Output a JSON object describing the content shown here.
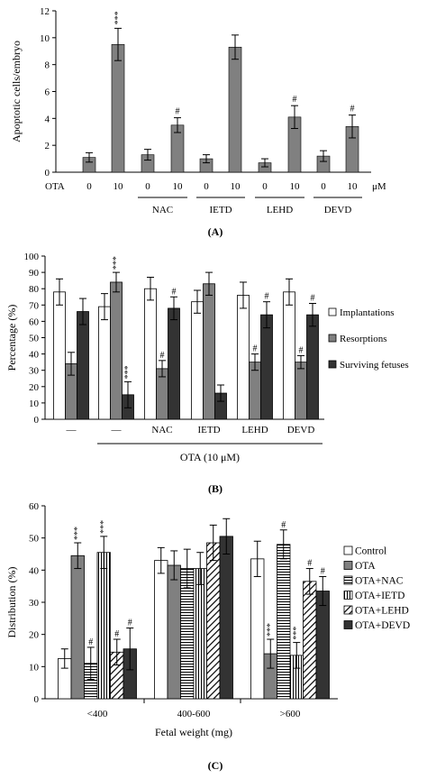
{
  "chart_data": [
    {
      "panel_label": "(A)",
      "type": "bar",
      "ylabel": "Apoptotic cells/embryo",
      "ylim": [
        0,
        12
      ],
      "yticks": [
        0,
        2,
        4,
        6,
        8,
        10,
        12
      ],
      "row_label": "OTA",
      "unit": "μM",
      "categories": [
        "0",
        "10",
        "0",
        "10",
        "0",
        "10",
        "0",
        "10",
        "0",
        "10"
      ],
      "groups": [
        {
          "label": "",
          "indices": [
            0,
            1
          ]
        },
        {
          "label": "NAC",
          "indices": [
            2,
            3
          ]
        },
        {
          "label": "IETD",
          "indices": [
            4,
            5
          ]
        },
        {
          "label": "LEHD",
          "indices": [
            6,
            7
          ]
        },
        {
          "label": "DEVD",
          "indices": [
            8,
            9
          ]
        }
      ],
      "values": [
        1.1,
        9.5,
        1.3,
        3.5,
        1.0,
        9.3,
        0.7,
        4.1,
        1.2,
        3.4
      ],
      "errors": [
        0.35,
        1.2,
        0.4,
        0.55,
        0.3,
        0.9,
        0.3,
        0.85,
        0.4,
        0.85
      ],
      "annotations": [
        "",
        "***",
        "",
        "#",
        "",
        "",
        "",
        "#",
        "",
        "#"
      ],
      "colors": {
        "bar": "#808080"
      }
    },
    {
      "panel_label": "(B)",
      "type": "bar",
      "ylabel": "Percentage (%)",
      "ylim": [
        0,
        100
      ],
      "yticks": [
        0,
        10,
        20,
        30,
        40,
        50,
        60,
        70,
        80,
        90,
        100
      ],
      "categories": [
        "—",
        "—",
        "NAC",
        "IETD",
        "LEHD",
        "DEVD"
      ],
      "xlabel": "OTA (10 μM)",
      "legend_position": "right",
      "series": [
        {
          "name": "Implantations",
          "color": "#ffffff",
          "values": [
            78,
            69,
            80,
            72,
            76,
            78
          ],
          "errors": [
            8,
            8,
            7,
            7,
            8,
            8
          ],
          "annotations": [
            "",
            "",
            "",
            "",
            "",
            ""
          ]
        },
        {
          "name": "Resorptions",
          "color": "#808080",
          "values": [
            34,
            84,
            31,
            83,
            35,
            35
          ],
          "errors": [
            7,
            6,
            5,
            7,
            5,
            4
          ],
          "annotations": [
            "",
            "***",
            "#",
            "",
            "#",
            "#"
          ]
        },
        {
          "name": "Surviving fetuses",
          "color": "#333333",
          "values": [
            66,
            15,
            68,
            16,
            64,
            64
          ],
          "errors": [
            8,
            8,
            7,
            5,
            8,
            7
          ],
          "annotations": [
            "",
            "***",
            "#",
            "",
            "#",
            "#"
          ]
        }
      ]
    },
    {
      "panel_label": "(C)",
      "type": "bar",
      "ylabel": "Distribution (%)",
      "xlabel": "Fetal weight (mg)",
      "ylim": [
        0,
        60
      ],
      "yticks": [
        0,
        10,
        20,
        30,
        40,
        50,
        60
      ],
      "categories": [
        "<400",
        "400-600",
        ">600"
      ],
      "legend_position": "right",
      "series": [
        {
          "name": "Control",
          "pattern": "white",
          "values": [
            12.5,
            43,
            43.5
          ],
          "errors": [
            3,
            4,
            5.5
          ],
          "annotations": [
            "",
            "",
            ""
          ]
        },
        {
          "name": "OTA",
          "pattern": "gray",
          "values": [
            44.5,
            41.5,
            14
          ],
          "errors": [
            4,
            4.5,
            4.5
          ],
          "annotations": [
            "***",
            "",
            "***"
          ]
        },
        {
          "name": "OTA+NAC",
          "pattern": "hlines",
          "values": [
            11,
            40.5,
            48
          ],
          "errors": [
            5,
            6,
            4.5
          ],
          "annotations": [
            "#",
            "",
            "#"
          ]
        },
        {
          "name": "OTA+IETD",
          "pattern": "vlines",
          "values": [
            45.5,
            40.5,
            13.5
          ],
          "errors": [
            5,
            5,
            4
          ],
          "annotations": [
            "***",
            "",
            "***"
          ]
        },
        {
          "name": "OTA+LEHD",
          "pattern": "diag",
          "values": [
            14.5,
            48.5,
            36.5
          ],
          "errors": [
            4,
            5.5,
            4
          ],
          "annotations": [
            "#",
            "",
            "#"
          ]
        },
        {
          "name": "OTA+DEVD",
          "pattern": "black",
          "values": [
            15.5,
            50.5,
            33.5
          ],
          "errors": [
            6.5,
            5.5,
            4.5
          ],
          "annotations": [
            "#",
            "",
            "#"
          ]
        }
      ]
    }
  ]
}
